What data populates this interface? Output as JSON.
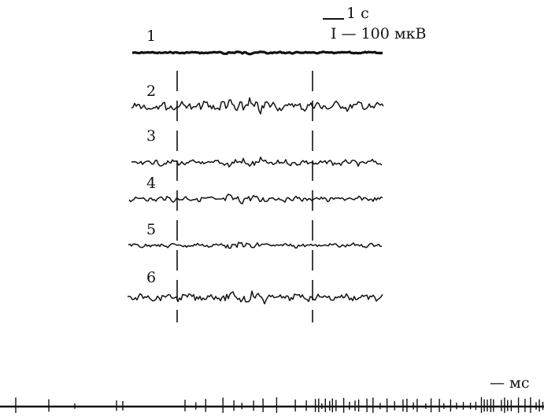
{
  "scale_bar": {
    "time_label": "1 с",
    "amplitude_label": "I — 100 мкВ"
  },
  "traces": [
    {
      "label": "1"
    },
    {
      "label": "2"
    },
    {
      "label": "3"
    },
    {
      "label": "4"
    },
    {
      "label": "5"
    },
    {
      "label": "6"
    }
  ],
  "spike_train": {
    "unit_label": "— мс"
  }
}
